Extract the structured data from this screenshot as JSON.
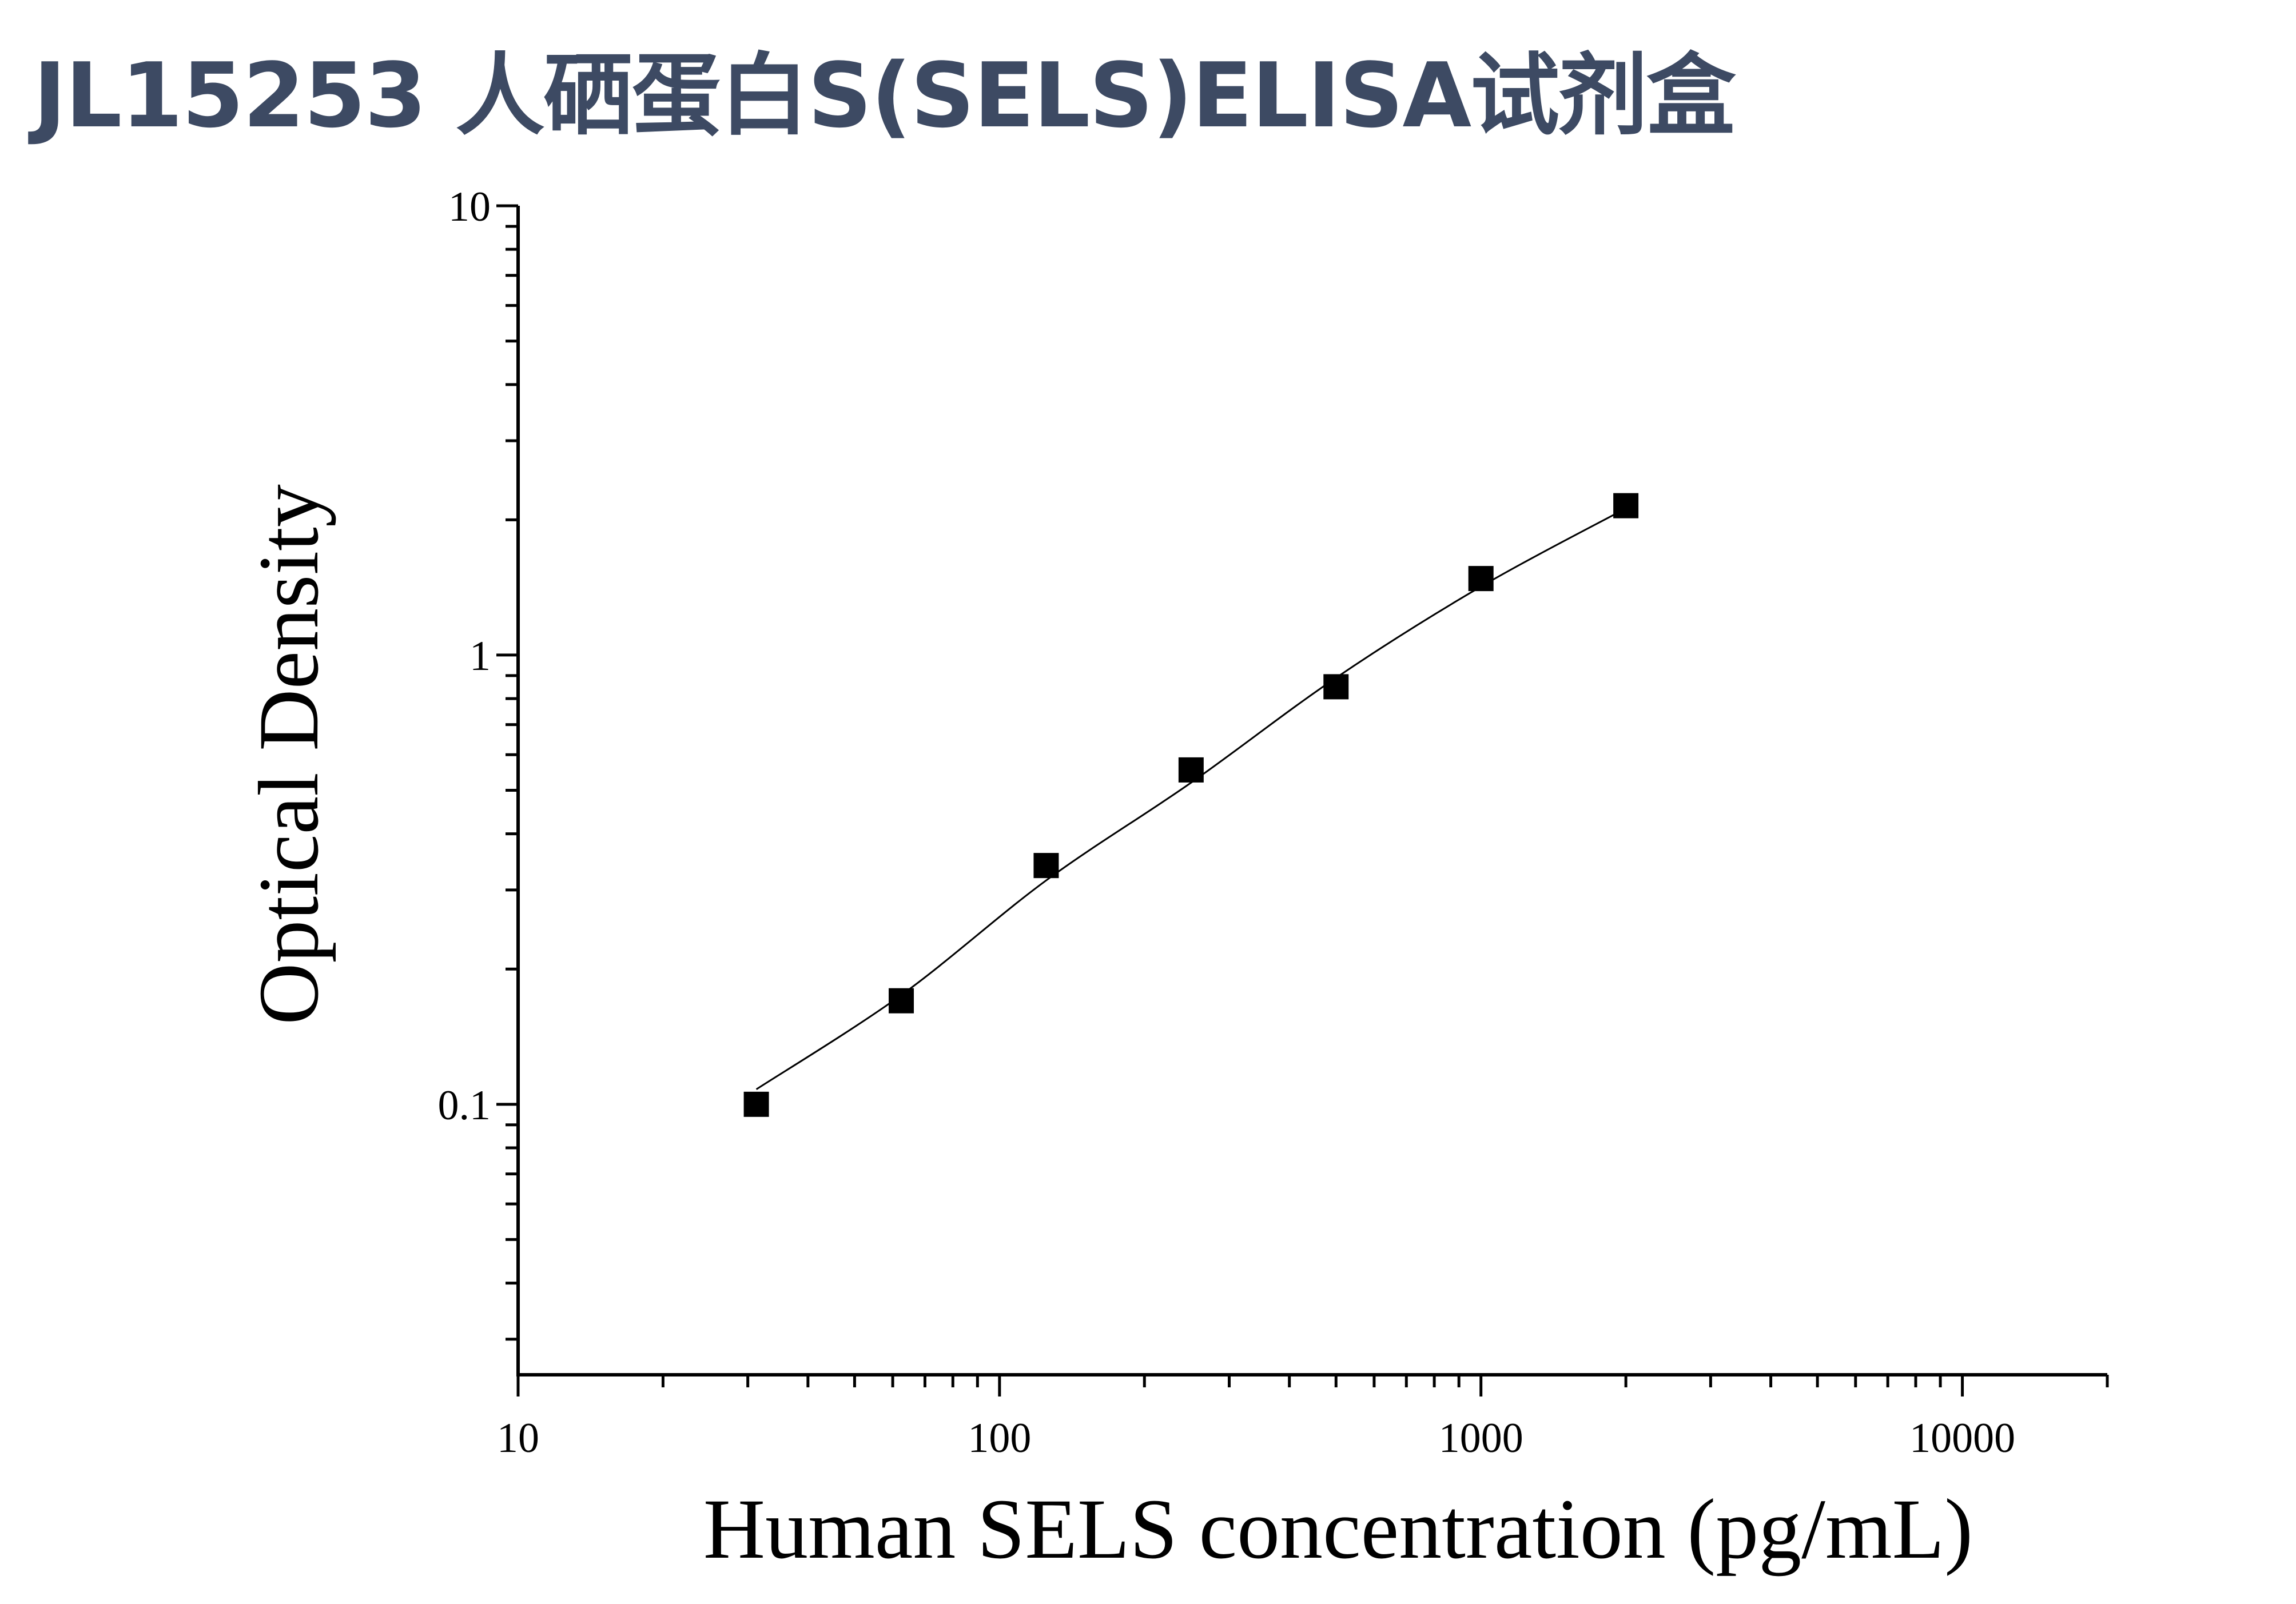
{
  "title": "JL15253 人硒蛋白S(SELS)ELISA试剂盒",
  "chart_data": {
    "type": "scatter",
    "xlabel": "Human SELS concentration (pg/mL)",
    "ylabel": "Optical Density",
    "x_scale": "log",
    "y_scale": "log",
    "xlim": [
      10,
      20000
    ],
    "ylim": [
      0.025,
      10
    ],
    "x_ticks": [
      "10",
      "100",
      "1000",
      "10000"
    ],
    "y_ticks": [
      "0.1",
      "1",
      "10"
    ],
    "grid": false,
    "marker": "square",
    "marker_color": "#000000",
    "line_color": "#000000",
    "series": [
      {
        "x": [
          31.25,
          62.5,
          125,
          250,
          500,
          1000,
          2000
        ],
        "y": [
          0.1,
          0.17,
          0.34,
          0.555,
          0.85,
          1.48,
          2.15
        ]
      }
    ],
    "fit_curve": {
      "x": [
        31.25,
        62.5,
        125,
        250,
        500,
        1000,
        2000
      ],
      "y": [
        0.108,
        0.175,
        0.315,
        0.52,
        0.89,
        1.42,
        2.12
      ]
    }
  }
}
